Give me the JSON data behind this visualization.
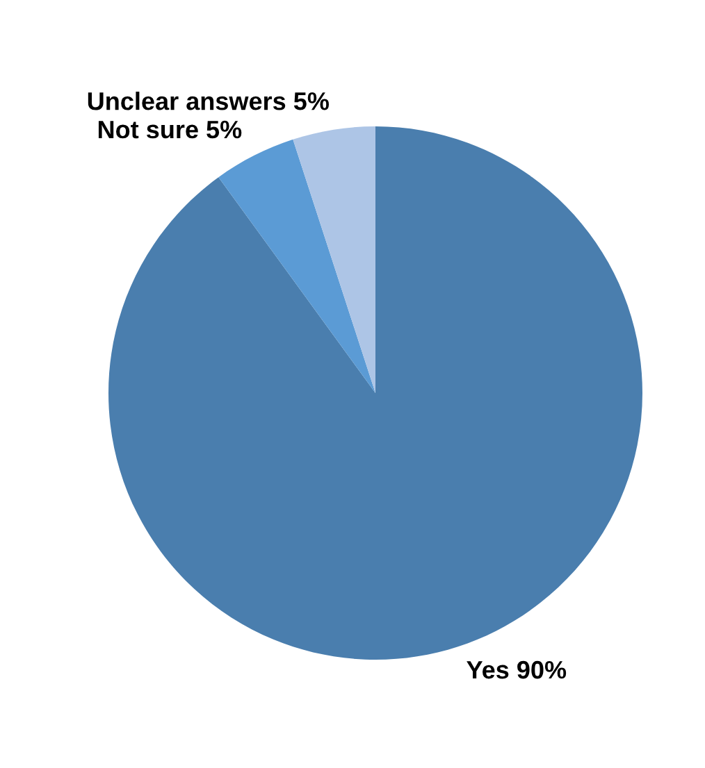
{
  "chart_data": {
    "type": "pie",
    "categories": [
      "Yes",
      "Not sure",
      "Unclear answers"
    ],
    "values": [
      90,
      5,
      5
    ],
    "value_labels": [
      "90%",
      "5%",
      "5%"
    ],
    "colors": [
      "#4a7eae",
      "#5b9bd5",
      "#adc5e6"
    ]
  }
}
